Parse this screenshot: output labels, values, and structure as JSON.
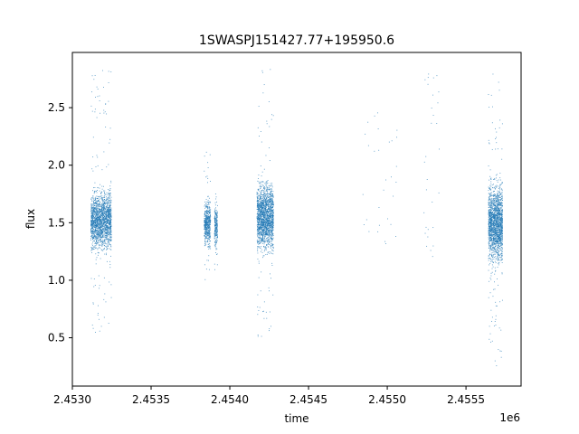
{
  "chart_data": {
    "type": "scatter",
    "title": "1SWASPJ151427.77+195950.6",
    "xlabel": "time",
    "ylabel": "flux",
    "x_offset_label": "1e6",
    "xlim": [
      2453000,
      2455850
    ],
    "ylim": [
      0.08,
      2.98
    ],
    "x_ticks": [
      2453000,
      2453500,
      2454000,
      2454500,
      2455000,
      2455500
    ],
    "x_tick_labels": [
      "2.4530",
      "2.4535",
      "2.4540",
      "2.4545",
      "2.4550",
      "2.4555"
    ],
    "y_ticks": [
      0.5,
      1.0,
      1.5,
      2.0,
      2.5
    ],
    "y_tick_labels": [
      "0.5",
      "1.0",
      "1.5",
      "2.0",
      "2.5"
    ],
    "grid": false,
    "legend": "none",
    "marker_color": "#1f77b4",
    "clusters": [
      {
        "x_start": 2453115,
        "x_end": 2453245,
        "y_center": 1.52,
        "y_spread": 0.2,
        "y_min": 0.55,
        "y_max": 2.85,
        "density": "very high"
      },
      {
        "x_start": 2453835,
        "x_end": 2453875,
        "y_center": 1.5,
        "y_spread": 0.15,
        "y_min": 0.95,
        "y_max": 2.15,
        "density": "medium"
      },
      {
        "x_start": 2453900,
        "x_end": 2453920,
        "y_center": 1.48,
        "y_spread": 0.15,
        "y_min": 1.05,
        "y_max": 1.95,
        "density": "low"
      },
      {
        "x_start": 2454170,
        "x_end": 2454275,
        "y_center": 1.55,
        "y_spread": 0.22,
        "y_min": 0.5,
        "y_max": 2.85,
        "density": "very high"
      },
      {
        "x_start": 2454840,
        "x_end": 2455060,
        "y_center": 1.9,
        "y_spread": 0.3,
        "y_min": 1.25,
        "y_max": 2.5,
        "density": "sparse"
      },
      {
        "x_start": 2455230,
        "x_end": 2455330,
        "y_center": 2.1,
        "y_spread": 0.35,
        "y_min": 1.2,
        "y_max": 2.8,
        "density": "sparse"
      },
      {
        "x_start": 2455640,
        "x_end": 2455730,
        "y_center": 1.5,
        "y_spread": 0.25,
        "y_min": 0.22,
        "y_max": 2.85,
        "density": "very high"
      }
    ]
  }
}
